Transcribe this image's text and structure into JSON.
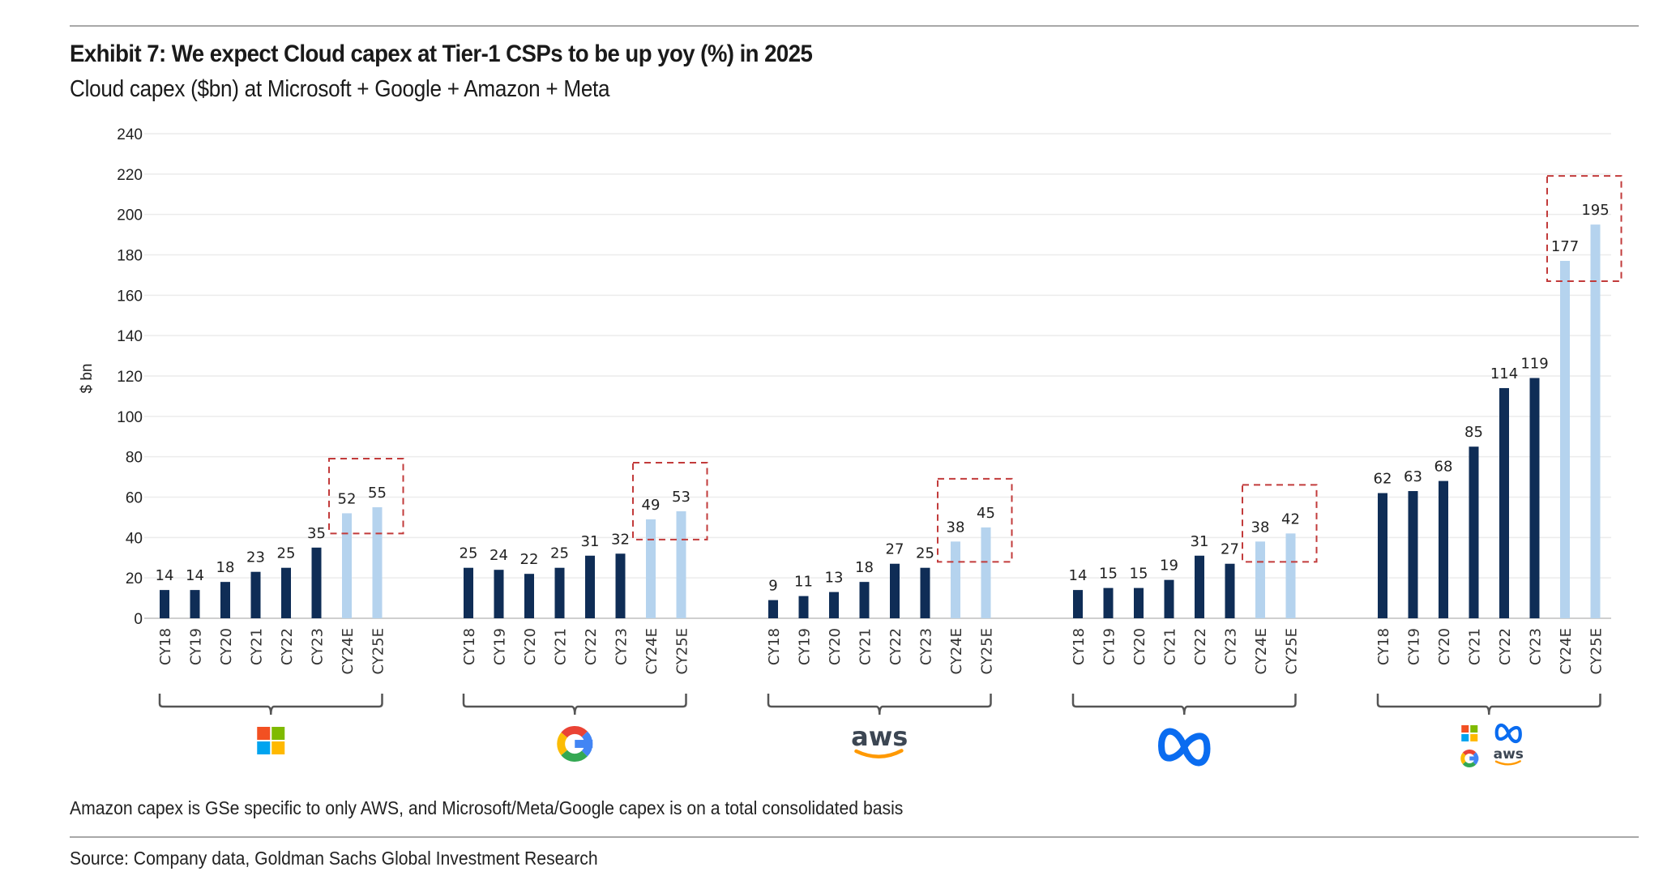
{
  "title": "Exhibit 7: We expect Cloud capex at Tier-1 CSPs to be up yoy (%) in 2025",
  "subtitle": "Cloud capex ($bn) at Microsoft + Google + Amazon + Meta",
  "note": "Amazon capex is GSe specific to only AWS, and Microsoft/Meta/Google capex is on a total consolidated basis",
  "source": "Source: Company data, Goldman Sachs Global Investment Research",
  "colors": {
    "actual": "#0f2d56",
    "estimate": "#b5d3ee",
    "highlight_box": "#c23b3b",
    "grid": "#ececec"
  },
  "chart_data": {
    "type": "bar",
    "title": "Exhibit 7: We expect Cloud capex at Tier-1 CSPs to be up yoy (%) in 2025",
    "subtitle": "Cloud capex ($bn) at Microsoft + Google + Amazon + Meta",
    "ylabel": "$ bn",
    "ylim": [
      0,
      240
    ],
    "yticks": [
      0,
      20,
      40,
      60,
      80,
      100,
      120,
      140,
      160,
      180,
      200,
      220,
      240
    ],
    "grid": true,
    "categories": [
      "CY18",
      "CY19",
      "CY20",
      "CY21",
      "CY22",
      "CY23",
      "CY24E",
      "CY25E"
    ],
    "estimate_categories": [
      "CY24E",
      "CY25E"
    ],
    "highlighted_categories": [
      "CY24E",
      "CY25E"
    ],
    "groups": [
      {
        "logo": "microsoft-logo",
        "values": [
          14,
          14,
          18,
          23,
          25,
          35,
          52,
          55
        ]
      },
      {
        "logo": "google-logo",
        "values": [
          25,
          24,
          22,
          25,
          31,
          32,
          49,
          53
        ]
      },
      {
        "logo": "aws-logo",
        "logo_text": "aws",
        "values": [
          9,
          11,
          13,
          18,
          27,
          25,
          38,
          45
        ]
      },
      {
        "logo": "meta-logo",
        "values": [
          14,
          15,
          15,
          19,
          31,
          27,
          38,
          42
        ]
      },
      {
        "logo": "combined-logos",
        "logo_text": "aws",
        "values": [
          62,
          63,
          68,
          85,
          114,
          119,
          177,
          195
        ]
      }
    ]
  }
}
